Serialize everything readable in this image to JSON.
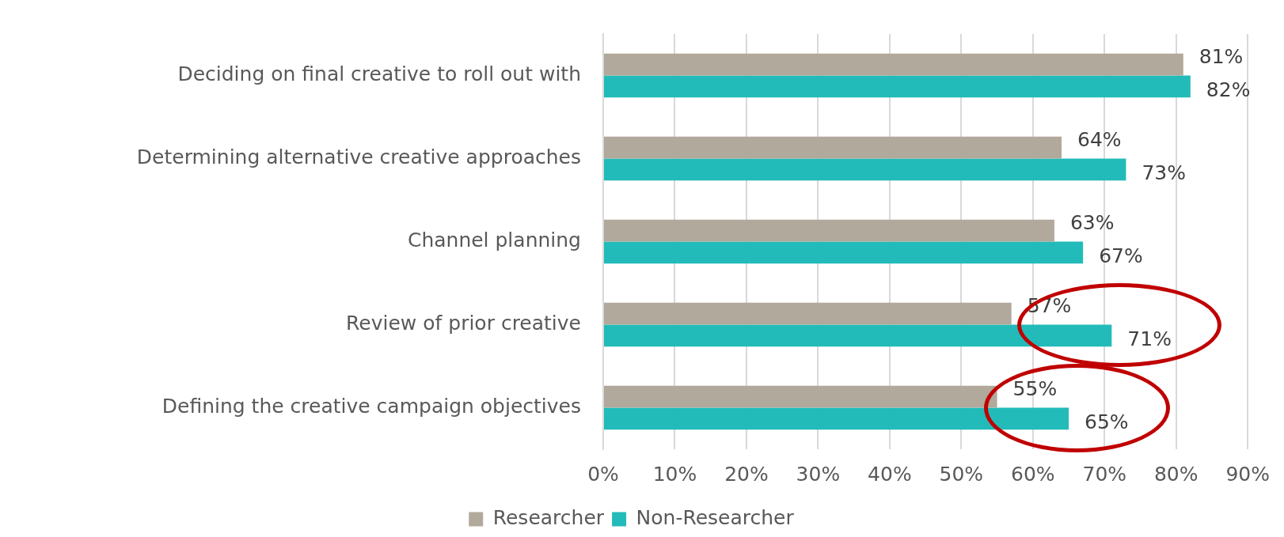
{
  "chart_data": {
    "type": "bar",
    "orientation": "horizontal",
    "categories": [
      "Deciding on final creative to roll out with",
      "Determining alternative creative approaches",
      "Channel planning",
      "Review of prior creative",
      "Defining the creative campaign objectives"
    ],
    "series": [
      {
        "name": "Researcher",
        "color": "#b1a99b",
        "values": [
          81,
          64,
          63,
          57,
          55
        ],
        "value_labels": [
          "81%",
          "64%",
          "63%",
          "57%",
          "55%"
        ]
      },
      {
        "name": "Non-Researcher",
        "color": "#22bbb9",
        "values": [
          82,
          73,
          67,
          71,
          65
        ],
        "value_labels": [
          "82%",
          "73%",
          "67%",
          "71%",
          "65%"
        ]
      }
    ],
    "xlim": [
      0,
      90
    ],
    "xticks": [
      {
        "value": 0,
        "label": "0%"
      },
      {
        "value": 10,
        "label": "10%"
      },
      {
        "value": 20,
        "label": "20%"
      },
      {
        "value": 30,
        "label": "30%"
      },
      {
        "value": 40,
        "label": "40%"
      },
      {
        "value": 50,
        "label": "50%"
      },
      {
        "value": 60,
        "label": "60%"
      },
      {
        "value": 70,
        "label": "70%"
      },
      {
        "value": 80,
        "label": "80%"
      },
      {
        "value": 90,
        "label": "90%"
      }
    ],
    "grid": "x",
    "legend": "bottom"
  }
}
